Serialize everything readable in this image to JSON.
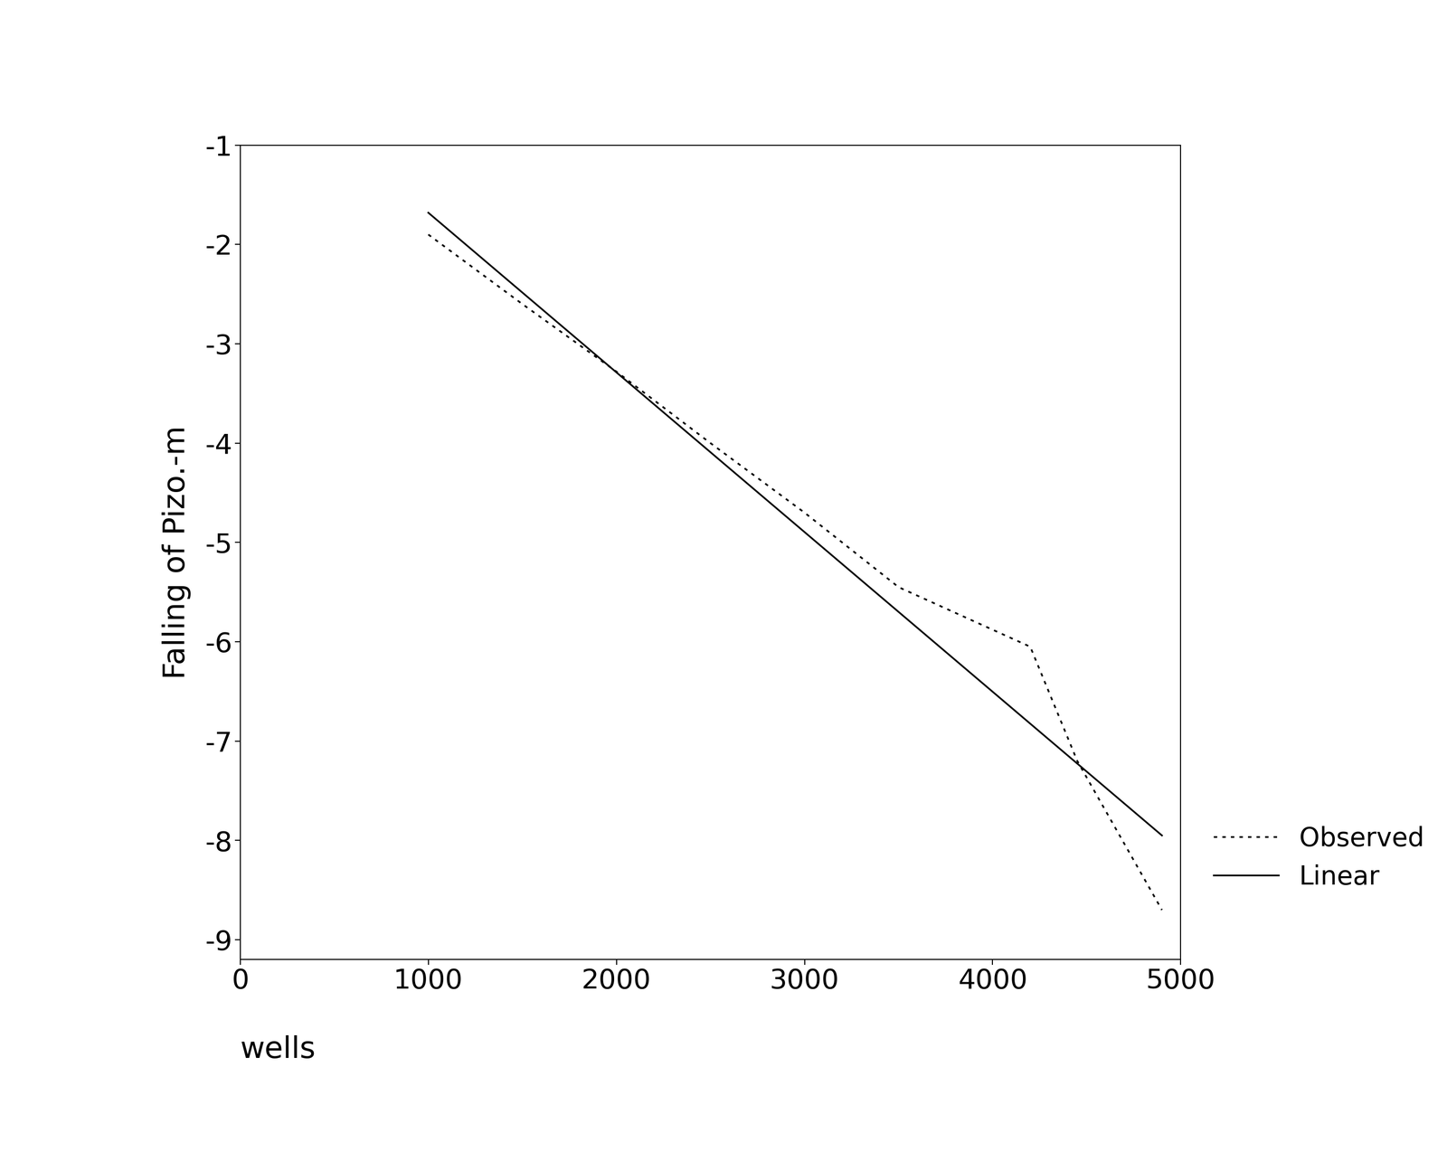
{
  "chart_data": {
    "type": "line",
    "x_label": "wells",
    "y_label": "Falling of Pizo.-m",
    "xlim": [
      0,
      5000
    ],
    "xticks": [
      0,
      1000,
      2000,
      3000,
      4000,
      5000
    ],
    "ylim": [
      -9.2,
      -1
    ],
    "yticks": [
      -9,
      -8,
      -7,
      -6,
      -5,
      -4,
      -3,
      -2,
      -1
    ],
    "grid": false,
    "legend": "right",
    "series": [
      {
        "name": "Observed",
        "color": "#000000",
        "line_style": "dotted",
        "marker": "none",
        "x": [
          1000,
          1500,
          2000,
          2500,
          3000,
          3500,
          4200,
          4450,
          4900
        ],
        "values": [
          -1.9,
          -2.6,
          -3.28,
          -4.0,
          -4.7,
          -5.45,
          -6.05,
          -7.2,
          -8.7
        ]
      },
      {
        "name": "Linear",
        "color": "#000000",
        "line_style": "solid",
        "marker": "none",
        "x": [
          1000,
          4900
        ],
        "values": [
          -1.68,
          -7.95
        ]
      }
    ]
  }
}
